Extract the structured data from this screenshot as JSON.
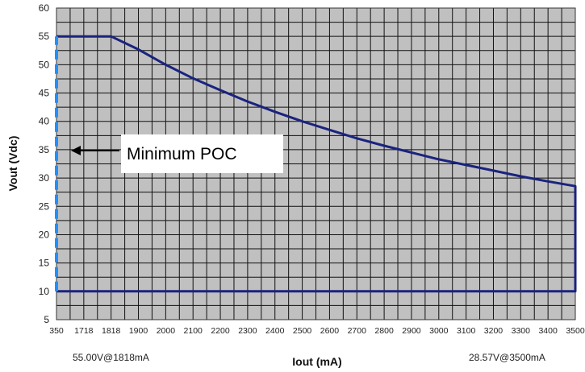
{
  "chart_data": {
    "type": "line",
    "title": "",
    "xlabel": "Iout (mA)",
    "ylabel": "Vout (Vdc)",
    "x_ticks": [
      "350",
      "1718",
      "1818",
      "1900",
      "2000",
      "2100",
      "2200",
      "2300",
      "2400",
      "2500",
      "2600",
      "2700",
      "2800",
      "2900",
      "3000",
      "3100",
      "3200",
      "3300",
      "3400",
      "3500"
    ],
    "y_ticks": [
      "5",
      "10",
      "15",
      "20",
      "25",
      "30",
      "35",
      "40",
      "45",
      "50",
      "55",
      "60"
    ],
    "ylim": [
      5,
      60
    ],
    "grid": true,
    "plot_background": "#c0c0c0",
    "series": [
      {
        "color": "#1a237e",
        "style": "solid",
        "x": [
          350,
          1718,
          1818,
          1900,
          2000,
          2100,
          2200,
          2300,
          2400,
          2500,
          2600,
          2700,
          2800,
          2900,
          3000,
          3100,
          3200,
          3300,
          3400,
          3500,
          3500,
          350
        ],
        "y": [
          55,
          55,
          55,
          52.7,
          50.0,
          47.6,
          45.5,
          43.5,
          41.7,
          40.0,
          38.5,
          37.0,
          35.7,
          34.5,
          33.3,
          32.3,
          31.3,
          30.3,
          29.4,
          28.57,
          10,
          10
        ]
      },
      {
        "color": "#1e90ff",
        "style": "dashed",
        "x": [
          350,
          350
        ],
        "y": [
          10,
          55
        ]
      }
    ],
    "annotations": [
      {
        "text": "Minimum POC",
        "arrow_to_x": 350,
        "arrow_to_y": 35
      }
    ],
    "corner_labels": {
      "left": "55.00V@1818mA",
      "right": "28.57V@3500mA"
    }
  }
}
